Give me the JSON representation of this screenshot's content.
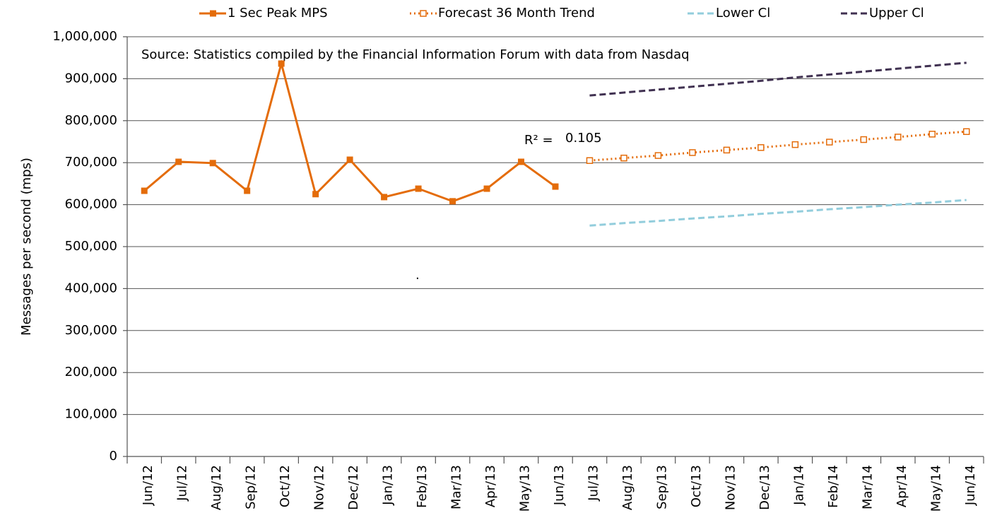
{
  "chart_data": {
    "type": "line",
    "y_label": "Messages per second (mps)",
    "annotations": [
      "Source: Statistics compiled by the Financial Information Forum with data from Nasdaq",
      "R² =",
      "0.105",
      "."
    ],
    "categories": [
      "Jun/12",
      "Jul/12",
      "Aug/12",
      "Sep/12",
      "Oct/12",
      "Nov/12",
      "Dec/12",
      "Jan/13",
      "Feb/13",
      "Mar/13",
      "Apr/13",
      "May/13",
      "Jun/13",
      "Jul/13",
      "Aug/13",
      "Sep/13",
      "Oct/13",
      "Nov/13",
      "Dec/13",
      "Jan/14",
      "Feb/14",
      "Mar/14",
      "Apr/14",
      "May/14",
      "Jun/14"
    ],
    "series": [
      {
        "name": "1 Sec Peak MPS",
        "color": "#e46c0a",
        "style": "solid",
        "marker": "square",
        "values": [
          633000,
          702000,
          699000,
          633000,
          936000,
          625000,
          707000,
          618000,
          638000,
          608000,
          638000,
          702000,
          643000,
          null,
          null,
          null,
          null,
          null,
          null,
          null,
          null,
          null,
          null,
          null,
          null
        ]
      },
      {
        "name": "Forecast 36 Month Trend",
        "color": "#e46c0a",
        "style": "dotted",
        "marker": "open-square",
        "values": [
          null,
          null,
          null,
          null,
          null,
          null,
          null,
          null,
          null,
          null,
          null,
          null,
          null,
          705000,
          711000,
          717000,
          724000,
          730000,
          736000,
          743000,
          749000,
          755000,
          761000,
          768000,
          774000
        ]
      },
      {
        "name": "Lower Cl",
        "color": "#92cddc",
        "style": "dashed",
        "marker": "none",
        "values": [
          null,
          null,
          null,
          null,
          null,
          null,
          null,
          null,
          null,
          null,
          null,
          null,
          null,
          550000,
          556000,
          561000,
          567000,
          572000,
          578000,
          583000,
          589000,
          594000,
          600000,
          605000,
          611000
        ]
      },
      {
        "name": "Upper Cl",
        "color": "#403151",
        "style": "dashed",
        "marker": "none",
        "values": [
          null,
          null,
          null,
          null,
          null,
          null,
          null,
          null,
          null,
          null,
          null,
          null,
          null,
          860000,
          867000,
          874000,
          881000,
          888000,
          895000,
          903000,
          910000,
          917000,
          924000,
          931000,
          938000
        ]
      }
    ],
    "ylim": [
      0,
      1000000
    ],
    "yticks": [
      0,
      {
        "value": 100000,
        "label": "100,000"
      },
      {
        "value": 200000,
        "label": "200,000"
      },
      {
        "value": 300000,
        "label": "300,000"
      },
      {
        "value": 400000,
        "label": "400,000"
      },
      {
        "value": 500000,
        "label": "500,000"
      },
      {
        "value": 600000,
        "label": "600,000"
      },
      {
        "value": 700000,
        "label": "700,000"
      },
      {
        "value": 800000,
        "label": "800,000"
      },
      {
        "value": 900000,
        "label": "900,000"
      },
      {
        "value": 1000000,
        "label": "1,000,000"
      }
    ],
    "grid": true,
    "legend": "top"
  }
}
